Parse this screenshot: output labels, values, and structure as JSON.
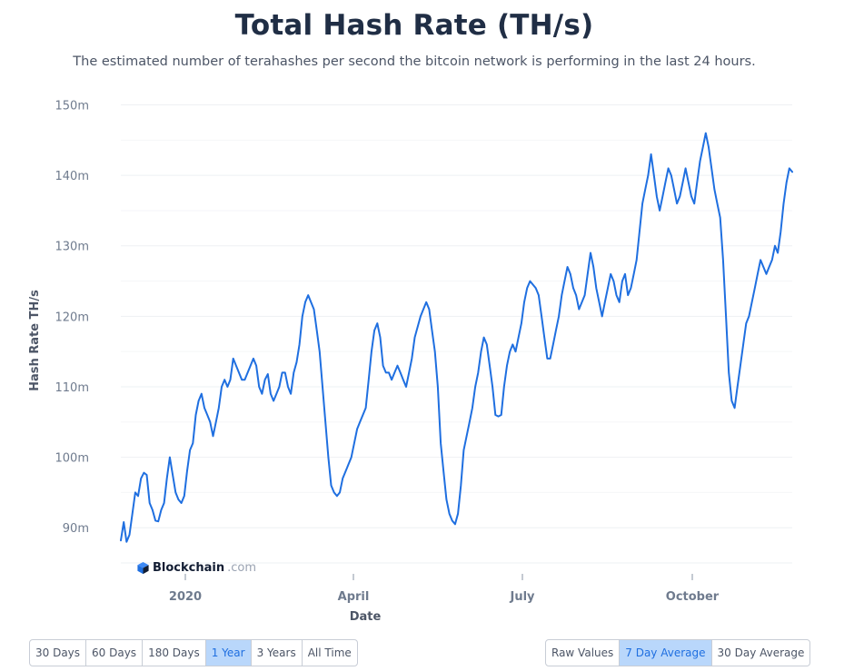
{
  "header": {
    "title": "Total Hash Rate (TH/s)",
    "subtitle": "The estimated number of terahashes per second the bitcoin network is performing in the last 24 hours."
  },
  "brand": {
    "name": "Blockchain",
    "suffix": ".com"
  },
  "range_buttons": [
    {
      "label": "30 Days",
      "active": false
    },
    {
      "label": "60 Days",
      "active": false
    },
    {
      "label": "180 Days",
      "active": false
    },
    {
      "label": "1 Year",
      "active": true
    },
    {
      "label": "3 Years",
      "active": false
    },
    {
      "label": "All Time",
      "active": false
    }
  ],
  "avg_buttons": [
    {
      "label": "Raw Values",
      "active": false
    },
    {
      "label": "7 Day Average",
      "active": true
    },
    {
      "label": "30 Day Average",
      "active": false
    }
  ],
  "chart_data": {
    "type": "line",
    "xlabel": "Date",
    "ylabel": "Hash Rate TH/s",
    "x_ticks": [
      "2020",
      "April",
      "July",
      "October"
    ],
    "y_ticks": [
      "90m",
      "100m",
      "110m",
      "120m",
      "130m",
      "140m",
      "150m"
    ],
    "ylim": [
      85,
      152
    ],
    "line_color": "#1f6fe0",
    "grid": true,
    "series": [
      {
        "values": [
          88.2,
          90.8,
          88,
          89,
          92,
          95,
          94.5,
          97,
          97.8,
          97.5,
          93.5,
          92.5,
          91,
          90.9,
          92.5,
          93.5,
          97,
          100,
          97.5,
          95,
          94,
          93.5,
          94.5,
          98,
          101,
          102,
          106,
          108,
          109,
          107,
          106,
          105,
          103,
          105,
          107,
          110,
          111,
          110,
          111,
          114,
          113,
          112,
          111,
          111,
          112,
          113,
          114,
          113,
          110,
          109,
          111,
          111.8,
          109,
          108,
          109,
          110,
          112,
          112,
          110,
          109,
          112,
          113.5,
          116,
          120,
          122,
          123,
          122,
          121,
          118,
          115,
          110,
          105,
          100,
          96,
          95,
          94.5,
          95,
          97,
          98,
          99,
          100,
          102,
          104,
          105,
          106,
          107,
          111,
          115,
          118,
          119,
          117,
          113,
          112,
          112,
          111,
          112,
          113,
          112,
          111,
          110,
          112,
          114,
          117,
          118.5,
          120,
          121,
          122,
          121,
          118,
          115,
          110,
          102,
          98,
          94,
          92,
          91,
          90.5,
          92,
          96,
          101,
          103,
          105,
          107,
          110,
          112,
          115,
          117,
          116,
          113,
          110,
          106,
          105.8,
          106,
          110,
          113,
          115,
          116,
          115,
          117,
          119,
          122,
          124,
          125,
          124.5,
          124,
          123,
          120,
          117,
          114,
          114,
          116,
          118,
          120,
          123,
          125,
          127,
          126,
          124,
          123,
          121,
          122,
          123,
          126,
          129,
          127,
          124,
          122,
          120,
          122,
          124,
          126,
          125,
          123,
          122,
          125,
          126,
          123,
          124,
          126,
          128,
          132,
          136,
          138,
          140,
          143,
          140,
          137,
          135,
          137,
          139,
          141,
          140,
          138,
          136,
          137,
          139,
          141,
          139,
          137,
          136,
          139,
          142,
          144,
          146,
          144,
          141,
          138,
          136,
          134,
          128,
          120,
          112,
          108,
          107,
          110,
          113,
          116,
          119,
          120,
          122,
          124,
          126,
          128,
          127,
          126,
          127,
          128,
          130,
          129,
          132,
          136,
          139,
          141,
          140.5
        ]
      }
    ]
  }
}
